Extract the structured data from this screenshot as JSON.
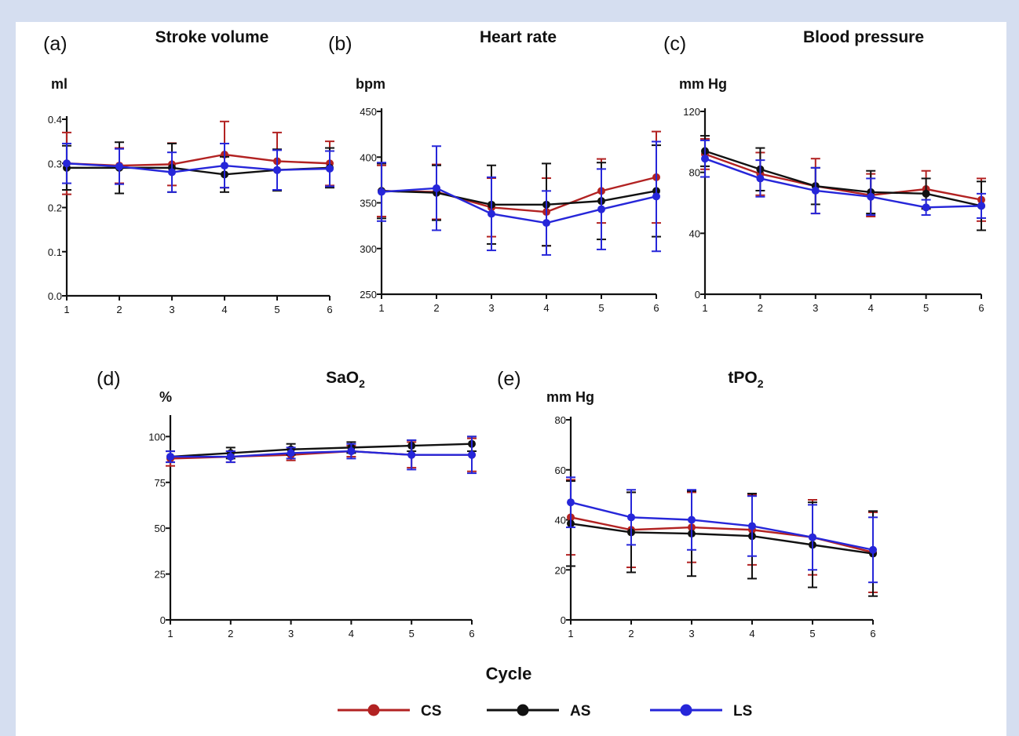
{
  "x_title": "Cycle",
  "legend": [
    {
      "label": "CS",
      "color": "#b22222"
    },
    {
      "label": "AS",
      "color": "#111111"
    },
    {
      "label": "LS",
      "color": "#2626d9"
    }
  ],
  "chart_data": [
    {
      "id": "a",
      "letter": "(a)",
      "title": "Stroke  volume",
      "title_main": "",
      "title_sub": "",
      "unit": "ml",
      "type": "line",
      "x": [
        1,
        2,
        3,
        4,
        5,
        6
      ],
      "ylim": [
        0.0,
        0.4
      ],
      "yticks": [
        "0.0",
        "0.1",
        "0.2",
        "0.3",
        "0.4"
      ],
      "series": [
        {
          "name": "CS",
          "values": [
            0.3,
            0.295,
            0.298,
            0.32,
            0.305,
            0.3
          ],
          "errors": [
            0.07,
            0.04,
            0.048,
            0.075,
            0.065,
            0.05
          ]
        },
        {
          "name": "AS",
          "values": [
            0.29,
            0.29,
            0.29,
            0.275,
            0.285,
            0.29
          ],
          "errors": [
            0.05,
            0.058,
            0.055,
            0.04,
            0.047,
            0.045
          ]
        },
        {
          "name": "LS",
          "values": [
            0.3,
            0.293,
            0.28,
            0.295,
            0.285,
            0.288
          ],
          "errors": [
            0.045,
            0.04,
            0.045,
            0.05,
            0.045,
            0.04
          ]
        }
      ]
    },
    {
      "id": "b",
      "letter": "(b)",
      "title": "Heart rate",
      "title_main": "",
      "title_sub": "",
      "unit": "bpm",
      "type": "line",
      "x": [
        1,
        2,
        3,
        4,
        5,
        6
      ],
      "ylim": [
        250,
        450
      ],
      "yticks": [
        "250",
        "300",
        "350",
        "400",
        "450"
      ],
      "series": [
        {
          "name": "CS",
          "values": [
            363,
            362,
            345,
            340,
            363,
            378
          ],
          "errors": [
            28,
            30,
            32,
            37,
            35,
            50
          ]
        },
        {
          "name": "AS",
          "values": [
            363,
            361,
            348,
            348,
            352,
            363
          ],
          "errors": [
            30,
            30,
            43,
            45,
            42,
            50
          ]
        },
        {
          "name": "LS",
          "values": [
            362,
            366,
            338,
            328,
            343,
            357
          ],
          "errors": [
            32,
            46,
            40,
            35,
            44,
            60
          ]
        }
      ]
    },
    {
      "id": "c",
      "letter": "(c)",
      "title": "Blood pressure",
      "title_main": "",
      "title_sub": "",
      "unit": "mm Hg",
      "type": "line",
      "x": [
        1,
        2,
        3,
        4,
        5,
        6
      ],
      "ylim": [
        0,
        120
      ],
      "yticks": [
        "0",
        "40",
        "80",
        "120"
      ],
      "series": [
        {
          "name": "CS",
          "values": [
            92,
            79,
            71,
            65,
            69,
            62
          ],
          "errors": [
            10,
            14,
            18,
            14,
            12,
            14
          ]
        },
        {
          "name": "AS",
          "values": [
            94,
            82,
            71,
            67,
            66,
            58
          ],
          "errors": [
            10,
            14,
            12,
            14,
            10,
            16
          ]
        },
        {
          "name": "LS",
          "values": [
            89,
            76,
            68,
            64,
            57,
            58
          ],
          "errors": [
            12,
            12,
            15,
            12,
            5,
            8
          ]
        }
      ]
    },
    {
      "id": "d",
      "letter": "(d)",
      "title": "",
      "title_main": "SaO",
      "title_sub": "2",
      "unit": "%",
      "type": "line",
      "x": [
        1,
        2,
        3,
        4,
        5,
        6
      ],
      "ylim": [
        0,
        110
      ],
      "yticks": [
        "0",
        "25",
        "50",
        "75",
        "100"
      ],
      "series": [
        {
          "name": "CS",
          "values": [
            88,
            89,
            90,
            92,
            90,
            90
          ],
          "errors": [
            4,
            3,
            3,
            3,
            7,
            9
          ]
        },
        {
          "name": "AS",
          "values": [
            89,
            91,
            93,
            94,
            95,
            96
          ],
          "errors": [
            3,
            3,
            3,
            3,
            3,
            4
          ]
        },
        {
          "name": "LS",
          "values": [
            89,
            89,
            91,
            92,
            90,
            90
          ],
          "errors": [
            3,
            3,
            3,
            4,
            8,
            10
          ]
        }
      ]
    },
    {
      "id": "e",
      "letter": "(e)",
      "title": "",
      "title_main": "tPO",
      "title_sub": "2",
      "unit": "mm Hg",
      "type": "line",
      "x": [
        1,
        2,
        3,
        4,
        5,
        6
      ],
      "ylim": [
        0,
        80
      ],
      "yticks": [
        "0",
        "20",
        "40",
        "60",
        "80"
      ],
      "series": [
        {
          "name": "CS",
          "values": [
            41,
            36,
            37,
            36,
            33,
            27
          ],
          "errors": [
            15,
            15,
            14,
            14,
            15,
            16
          ]
        },
        {
          "name": "AS",
          "values": [
            38.5,
            35,
            34.5,
            33.5,
            30,
            26.5
          ],
          "errors": [
            17,
            16,
            17,
            17,
            17,
            17
          ]
        },
        {
          "name": "LS",
          "values": [
            47,
            41,
            40,
            37.5,
            33,
            28
          ],
          "errors": [
            10,
            11,
            12,
            12,
            13,
            13
          ]
        }
      ]
    }
  ]
}
